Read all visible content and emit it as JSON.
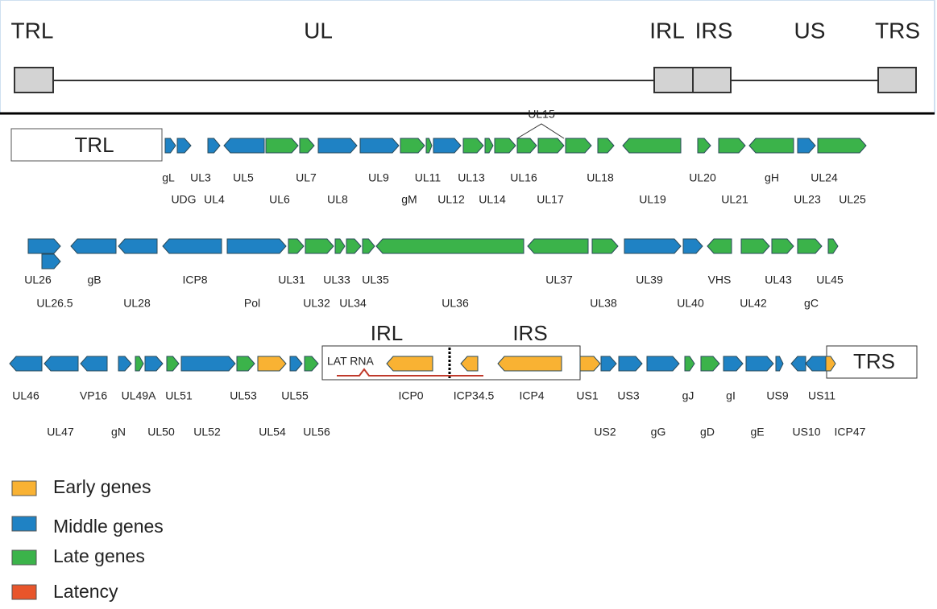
{
  "genome": {
    "regions": [
      "TRL",
      "UL",
      "IRL",
      "IRS",
      "US",
      "TRS"
    ]
  },
  "map": {
    "boxes": {
      "trl": "TRL",
      "irl": "IRL",
      "irs": "IRS",
      "trs": "TRS",
      "lat": "LAT RNA",
      "ul15": "UL15"
    },
    "rows": [
      {
        "top": [
          "gL",
          "UL3",
          "UL5",
          "UL7",
          "UL9",
          "UL11",
          "UL13",
          "UL16",
          "UL18",
          "UL20",
          "gH",
          "UL24"
        ],
        "bottom": [
          "UDG",
          "UL4",
          "UL6",
          "UL8",
          "gM",
          "UL12",
          "UL14",
          "UL17",
          "UL19",
          "UL21",
          "UL23",
          "UL25"
        ]
      },
      {
        "top": [
          "UL26",
          "gB",
          "ICP8",
          "UL31",
          "UL33",
          "UL35",
          "UL37",
          "UL39",
          "VHS",
          "UL43",
          "UL45"
        ],
        "bottom": [
          "UL26.5",
          "UL28",
          "Pol",
          "UL32",
          "UL34",
          "UL36",
          "UL38",
          "UL40",
          "UL42",
          "gC"
        ]
      },
      {
        "top": [
          "UL46",
          "VP16",
          "UL49A",
          "UL51",
          "UL53",
          "UL55",
          "ICP0",
          "ICP34.5",
          "ICP4",
          "US1",
          "US3",
          "gJ",
          "gI",
          "US9",
          "US11"
        ],
        "bottom": [
          "UL47",
          "gN",
          "UL50",
          "UL52",
          "UL54",
          "UL56",
          "US2",
          "gG",
          "gD",
          "gE",
          "US10",
          "ICP47"
        ]
      }
    ]
  },
  "legend": [
    "Early genes",
    "Middle genes",
    "Late genes",
    "Latency"
  ]
}
